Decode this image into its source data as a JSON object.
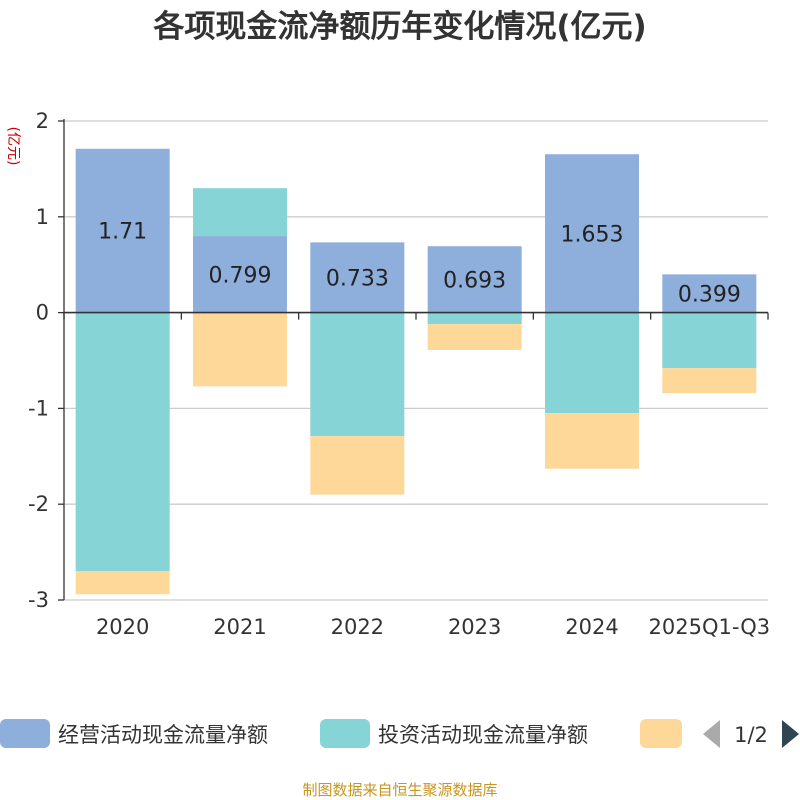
{
  "colors": {
    "operating": "#8eaedb",
    "investing": "#87d4d6",
    "financing": "#fed899",
    "grid": "#cccccc",
    "axis": "#333333",
    "unit": "#cc0000",
    "source": "#c8961e",
    "pager_active": "#2f4554",
    "pager_inactive": "#aaaaaa"
  },
  "chart_data": {
    "type": "bar",
    "stacked": true,
    "title": "各项现金流净额历年变化情况(亿元)",
    "ylabel": "(亿元)",
    "ylim": [
      -3,
      2
    ],
    "yticks": [
      2,
      1,
      0,
      -1,
      -2,
      -3
    ],
    "categories": [
      "2020",
      "2021",
      "2022",
      "2023",
      "2024",
      "2025Q1-Q3"
    ],
    "series": [
      {
        "name": "经营活动现金流量净额",
        "color_key": "operating",
        "values": [
          1.71,
          0.799,
          0.733,
          0.693,
          1.653,
          0.399
        ],
        "labels": [
          "1.71",
          "0.799",
          "0.733",
          "0.693",
          "1.653",
          "0.399"
        ]
      },
      {
        "name": "投资活动现金流量净额",
        "color_key": "investing",
        "values": [
          -2.7,
          0.5,
          -1.29,
          -0.12,
          -1.05,
          -0.58
        ]
      },
      {
        "name": "",
        "color_key": "financing",
        "values": [
          -0.24,
          -0.77,
          -0.61,
          -0.27,
          -0.58,
          -0.26
        ]
      }
    ]
  },
  "legend": {
    "items": [
      "经营活动现金流量净额",
      "投资活动现金流量净额",
      ""
    ],
    "page": "1/2"
  },
  "source": "制图数据来自恒生聚源数据库"
}
